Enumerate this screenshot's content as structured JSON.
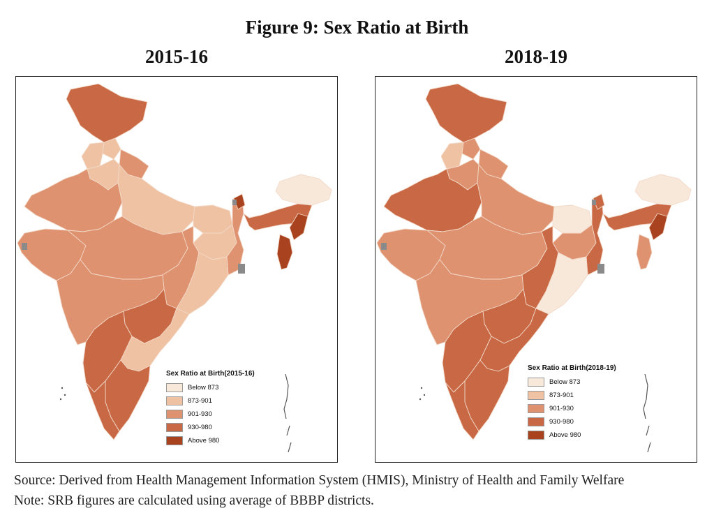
{
  "figure_title": "Figure 9: Sex Ratio at Birth",
  "maps": [
    {
      "period": "2015-16",
      "legend_title": "Sex Ratio at Birth(2015-16)",
      "region_classes": {
        "jk": "930-980",
        "hp": "873-901",
        "pb": "873-901",
        "uk": "901-930",
        "hr": "873-901",
        "rj": "901-930",
        "up": "873-901",
        "gj": "901-930",
        "mp": "901-930",
        "br": "873-901",
        "jh": "873-901",
        "wb": "901-930",
        "cg": "901-930",
        "od": "873-901",
        "mh": "901-930",
        "tg": "930-980",
        "ap": "873-901",
        "ka": "930-980",
        "kl": "930-980",
        "tn": "930-980",
        "ne_ar": "Below 873",
        "ne_as": "930-980",
        "ne_nl": "Above 980",
        "ne_mz": "Above 980",
        "sk": "Above 980"
      }
    },
    {
      "period": "2018-19",
      "legend_title": "Sex Ratio at Birth(2018-19)",
      "region_classes": {
        "jk": "930-980",
        "hp": "901-930",
        "pb": "873-901",
        "uk": "901-930",
        "hr": "901-930",
        "rj": "930-980",
        "up": "901-930",
        "gj": "901-930",
        "mp": "901-930",
        "br": "Below 873",
        "jh": "901-930",
        "wb": "930-980",
        "cg": "930-980",
        "od": "Below 873",
        "mh": "901-930",
        "tg": "930-980",
        "ap": "930-980",
        "ka": "930-980",
        "kl": "930-980",
        "tn": "930-980",
        "ne_ar": "Below 873",
        "ne_as": "930-980",
        "ne_nl": "Above 980",
        "ne_mz": "901-930",
        "sk": "930-980"
      }
    }
  ],
  "legend_classes": [
    {
      "label": "Below 873",
      "color": "#f8e8da"
    },
    {
      "label": "873-901",
      "color": "#eec2a2"
    },
    {
      "label": "901-930",
      "color": "#de9270"
    },
    {
      "label": "930-980",
      "color": "#c86844"
    },
    {
      "label": "Above 980",
      "color": "#a9431f"
    }
  ],
  "source_text": "Source: Derived from Health Management Information System (HMIS), Ministry of Health and Family Welfare",
  "note_text": "Note: SRB figures are calculated using average of BBBP districts."
}
